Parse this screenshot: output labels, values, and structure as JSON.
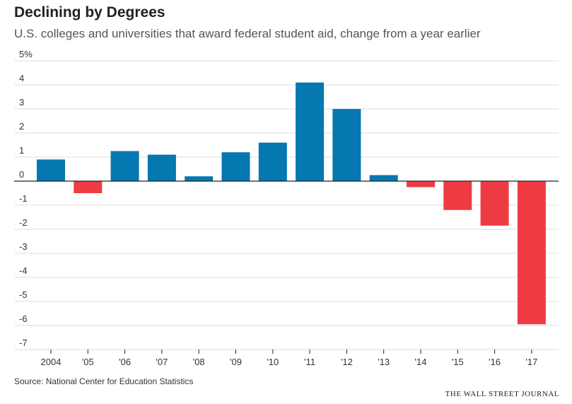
{
  "chart_data": {
    "type": "bar",
    "title": "Declining by Degrees",
    "subtitle": "U.S. colleges and universities that award federal student aid, change from a year earlier",
    "xlabel": "",
    "ylabel": "",
    "categories": [
      "2004",
      "'05",
      "'06",
      "'07",
      "'08",
      "'09",
      "'10",
      "'11",
      "'12",
      "'13",
      "'14",
      "'15",
      "'16",
      "'17"
    ],
    "values": [
      0.9,
      -0.5,
      1.25,
      1.1,
      0.2,
      1.2,
      1.6,
      4.1,
      3.0,
      0.25,
      -0.25,
      -1.2,
      -1.85,
      -5.95
    ],
    "ylim": [
      -7,
      5
    ],
    "yticks": [
      5,
      4,
      3,
      2,
      1,
      0,
      -1,
      -2,
      -3,
      -4,
      -5,
      -6,
      -7
    ],
    "ytick_labels": [
      "5%",
      "4",
      "3",
      "2",
      "1",
      "0",
      "-1",
      "-2",
      "-3",
      "-4",
      "-5",
      "-6",
      "-7"
    ],
    "grid": true,
    "colors": {
      "positive": "#0577b1",
      "negative": "#ef3b44"
    }
  },
  "footer": {
    "source": "Source: National Center for Education Statistics",
    "publisher": "THE WALL STREET JOURNAL"
  }
}
